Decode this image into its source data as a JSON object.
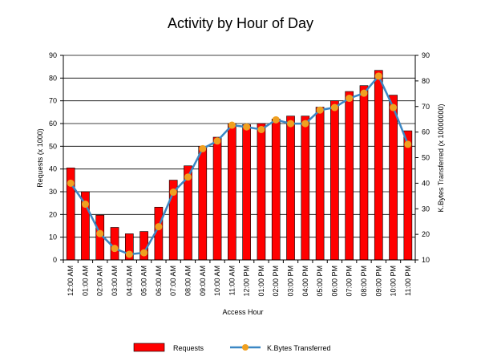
{
  "chart_data": {
    "type": "bar",
    "title": "Activity by Hour of Day",
    "xlabel": "Access Hour",
    "ylabel": "Requests (x 1000)",
    "y2label": "K.Bytes Transferred (x 10000000)",
    "categories": [
      "12:00 AM",
      "01:00 AM",
      "02:00 AM",
      "03:00 AM",
      "04:00 AM",
      "05:00 AM",
      "06:00 AM",
      "07:00 AM",
      "08:00 AM",
      "09:00 AM",
      "10:00 AM",
      "11:00 AM",
      "12:00 PM",
      "01:00 PM",
      "02:00 PM",
      "03:00 PM",
      "04:00 PM",
      "05:00 PM",
      "06:00 PM",
      "07:00 PM",
      "08:00 PM",
      "09:00 PM",
      "10:00 PM",
      "11:00 PM"
    ],
    "ylim": [
      0,
      90
    ],
    "y_ticks": [
      0,
      10,
      20,
      30,
      40,
      50,
      60,
      70,
      80,
      90
    ],
    "y2lim": [
      10,
      90
    ],
    "y2_ticks": [
      10,
      20,
      30,
      40,
      50,
      60,
      70,
      80,
      90
    ],
    "grid": true,
    "legend_position": "bottom",
    "series": [
      {
        "name": "Requests",
        "type": "bar",
        "axis": "left",
        "color": "#ff0000",
        "values": [
          40.5,
          30,
          19.7,
          14.3,
          11.5,
          12.5,
          23.2,
          35.1,
          41.4,
          50,
          54,
          60,
          59.5,
          60,
          62,
          63.3,
          63.3,
          67.2,
          70,
          74.1,
          76.7,
          83.4,
          72.5,
          56.8
        ]
      },
      {
        "name": "K.Bytes Transferred",
        "type": "line",
        "axis": "right",
        "color": "#3b87c4",
        "marker_color": "#f0a020",
        "values": [
          40,
          31.8,
          20.3,
          14.5,
          12.2,
          12.8,
          23,
          36.5,
          42.4,
          53.5,
          56.5,
          62.7,
          62,
          61,
          64.8,
          63.3,
          63.3,
          68.6,
          69.6,
          73.2,
          75.2,
          81.9,
          69.6,
          55.2
        ]
      }
    ]
  }
}
